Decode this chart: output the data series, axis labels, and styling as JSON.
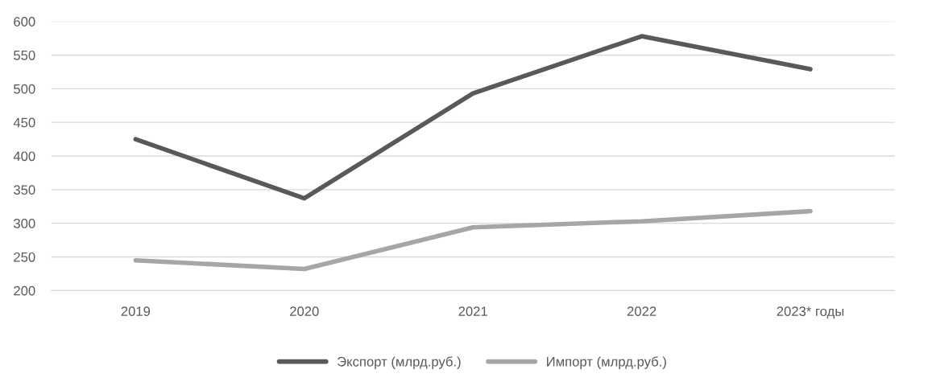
{
  "chart_data": {
    "type": "line",
    "categories": [
      "2019",
      "2020",
      "2021",
      "2022",
      "2023* годы"
    ],
    "series": [
      {
        "name": "Экспорт (млрд.руб.)",
        "color": "#595959",
        "values": [
          425,
          337,
          493,
          578,
          529
        ]
      },
      {
        "name": "Импорт (млрд.руб.)",
        "color": "#a6a6a6",
        "values": [
          245,
          232,
          294,
          303,
          318
        ]
      }
    ],
    "ylim": [
      200,
      600
    ],
    "yticks": [
      200,
      250,
      300,
      350,
      400,
      450,
      500,
      550,
      600
    ],
    "grid": "y",
    "legend": "bottom",
    "marker": "none",
    "line_style": "solid"
  }
}
